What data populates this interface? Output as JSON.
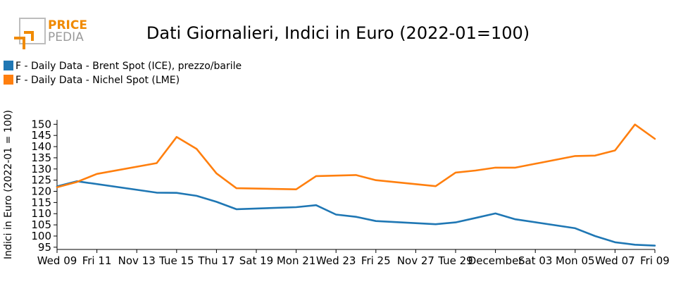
{
  "logo": {
    "word1": "PRICE",
    "word2": "PEDIA"
  },
  "colors": {
    "brent": "#1f77b4",
    "nichel": "#ff7f0e",
    "logo_orange": "#f08a00",
    "logo_gray": "#9a9a9a"
  },
  "chart_data": {
    "type": "line",
    "title": "Dati Giornalieri, Indici in Euro (2022-01=100)",
    "xlabel": "",
    "ylabel": "Indici in Euro (2022-01 = 100)",
    "ylim": [
      94,
      152
    ],
    "yticks": [
      95,
      100,
      105,
      110,
      115,
      120,
      125,
      130,
      135,
      140,
      145,
      150
    ],
    "xlim": [
      "2022-11-09",
      "2022-12-09"
    ],
    "xticks": [
      {
        "date": "2022-11-09",
        "label": "Wed 09"
      },
      {
        "date": "2022-11-11",
        "label": "Fri 11"
      },
      {
        "date": "2022-11-13",
        "label": "Nov 13"
      },
      {
        "date": "2022-11-15",
        "label": "Tue 15"
      },
      {
        "date": "2022-11-17",
        "label": "Thu 17"
      },
      {
        "date": "2022-11-19",
        "label": "Sat 19"
      },
      {
        "date": "2022-11-21",
        "label": "Mon 21"
      },
      {
        "date": "2022-11-23",
        "label": "Wed 23"
      },
      {
        "date": "2022-11-25",
        "label": "Fri 25"
      },
      {
        "date": "2022-11-27",
        "label": "Nov 27"
      },
      {
        "date": "2022-11-29",
        "label": "Tue 29"
      },
      {
        "date": "2022-12-01",
        "label": "December"
      },
      {
        "date": "2022-12-03",
        "label": "Sat 03"
      },
      {
        "date": "2022-12-05",
        "label": "Mon 05"
      },
      {
        "date": "2022-12-07",
        "label": "Wed 07"
      },
      {
        "date": "2022-12-09",
        "label": "Fri 09"
      }
    ],
    "legend_position": "top-left",
    "grid": false,
    "series": [
      {
        "name": "F - Daily Data - Brent Spot (ICE), prezzo/barile",
        "color": "#1f77b4",
        "points": [
          {
            "x": "2022-11-09",
            "y": 122.2
          },
          {
            "x": "2022-11-10",
            "y": 124.5
          },
          {
            "x": "2022-11-14",
            "y": 119.4
          },
          {
            "x": "2022-11-15",
            "y": 119.3
          },
          {
            "x": "2022-11-16",
            "y": 118.0
          },
          {
            "x": "2022-11-17",
            "y": 115.3
          },
          {
            "x": "2022-11-18",
            "y": 112.0
          },
          {
            "x": "2022-11-21",
            "y": 112.9
          },
          {
            "x": "2022-11-22",
            "y": 113.8
          },
          {
            "x": "2022-11-23",
            "y": 109.6
          },
          {
            "x": "2022-11-24",
            "y": 108.6
          },
          {
            "x": "2022-11-25",
            "y": 106.7
          },
          {
            "x": "2022-11-28",
            "y": 105.3
          },
          {
            "x": "2022-11-29",
            "y": 106.1
          },
          {
            "x": "2022-11-30",
            "y": 108.1
          },
          {
            "x": "2022-12-01",
            "y": 110.1
          },
          {
            "x": "2022-12-02",
            "y": 107.5
          },
          {
            "x": "2022-12-05",
            "y": 103.5
          },
          {
            "x": "2022-12-06",
            "y": 100.0
          },
          {
            "x": "2022-12-07",
            "y": 97.2
          },
          {
            "x": "2022-12-08",
            "y": 96.1
          },
          {
            "x": "2022-12-09",
            "y": 95.7
          }
        ]
      },
      {
        "name": "F - Daily Data - Nichel Spot (LME)",
        "color": "#ff7f0e",
        "points": [
          {
            "x": "2022-11-09",
            "y": 121.8
          },
          {
            "x": "2022-11-10",
            "y": 124.2
          },
          {
            "x": "2022-11-11",
            "y": 127.8
          },
          {
            "x": "2022-11-14",
            "y": 132.6
          },
          {
            "x": "2022-11-15",
            "y": 144.3
          },
          {
            "x": "2022-11-16",
            "y": 139.0
          },
          {
            "x": "2022-11-17",
            "y": 128.0
          },
          {
            "x": "2022-11-18",
            "y": 121.4
          },
          {
            "x": "2022-11-21",
            "y": 120.9
          },
          {
            "x": "2022-11-22",
            "y": 126.8
          },
          {
            "x": "2022-11-24",
            "y": 127.3
          },
          {
            "x": "2022-11-25",
            "y": 125.0
          },
          {
            "x": "2022-11-28",
            "y": 122.3
          },
          {
            "x": "2022-11-29",
            "y": 128.4
          },
          {
            "x": "2022-11-30",
            "y": 129.3
          },
          {
            "x": "2022-12-01",
            "y": 130.6
          },
          {
            "x": "2022-12-02",
            "y": 130.6
          },
          {
            "x": "2022-12-05",
            "y": 135.8
          },
          {
            "x": "2022-12-06",
            "y": 136.0
          },
          {
            "x": "2022-12-07",
            "y": 138.3
          },
          {
            "x": "2022-12-08",
            "y": 149.9
          },
          {
            "x": "2022-12-09",
            "y": 143.5
          }
        ]
      }
    ]
  }
}
